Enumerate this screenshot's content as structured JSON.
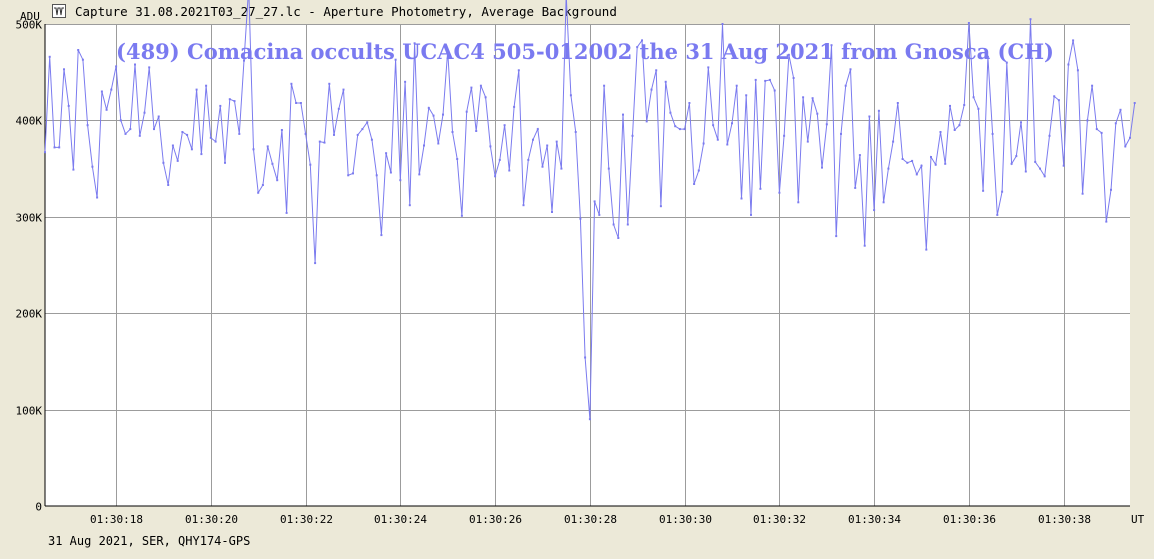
{
  "header": {
    "icon": "lightcurve-icon",
    "title": "Capture 31.08.2021T03_27_27.lc - Aperture Photometry, Average Background"
  },
  "footer": {
    "text": "31 Aug 2021, SER, QHY174-GPS"
  },
  "chart_data": {
    "type": "line",
    "title": "(489) Comacina occults UCAC4 505-012002 the 31 Aug 2021 from Gnosca (CH)",
    "ylabel": "ADU",
    "xlabel": "UT",
    "xlim": [
      16.5,
      39.4
    ],
    "ylim": [
      0,
      500000
    ],
    "grid": true,
    "series_color": "#7b7bef",
    "title_color": "#7a7af0",
    "x_ticks": [
      {
        "value": 18,
        "label": "01:30:18"
      },
      {
        "value": 20,
        "label": "01:30:20"
      },
      {
        "value": 22,
        "label": "01:30:22"
      },
      {
        "value": 24,
        "label": "01:30:24"
      },
      {
        "value": 26,
        "label": "01:30:26"
      },
      {
        "value": 28,
        "label": "01:30:28"
      },
      {
        "value": 30,
        "label": "01:30:30"
      },
      {
        "value": 32,
        "label": "01:30:32"
      },
      {
        "value": 34,
        "label": "01:30:34"
      },
      {
        "value": 36,
        "label": "01:30:36"
      },
      {
        "value": 38,
        "label": "01:30:38"
      }
    ],
    "y_ticks": [
      {
        "value": 0,
        "label": "0"
      },
      {
        "value": 100000,
        "label": "100K"
      },
      {
        "value": 200000,
        "label": "200K"
      },
      {
        "value": 300000,
        "label": "300K"
      },
      {
        "value": 400000,
        "label": "400K"
      },
      {
        "value": 500000,
        "label": "500K"
      }
    ],
    "x_start": 16.5,
    "x_step": 0.1,
    "values": [
      367000,
      466000,
      372000,
      372000,
      453000,
      415000,
      349000,
      473000,
      463000,
      395000,
      352000,
      320000,
      430000,
      411000,
      432000,
      456000,
      400000,
      386000,
      391000,
      458000,
      384000,
      408000,
      455000,
      391000,
      404000,
      356000,
      333000,
      374000,
      358000,
      388000,
      385000,
      370000,
      432000,
      365000,
      436000,
      382000,
      378000,
      415000,
      356000,
      422000,
      420000,
      386000,
      462000,
      538000,
      370000,
      325000,
      333000,
      373000,
      355000,
      338000,
      390000,
      304000,
      438000,
      418000,
      418000,
      386000,
      354000,
      252000,
      378000,
      377000,
      438000,
      385000,
      412000,
      432000,
      343000,
      345000,
      385000,
      391000,
      398000,
      380000,
      343000,
      281000,
      366000,
      346000,
      463000,
      338000,
      440000,
      312000,
      480000,
      344000,
      374000,
      413000,
      405000,
      376000,
      406000,
      472000,
      388000,
      360000,
      301000,
      409000,
      434000,
      389000,
      436000,
      424000,
      373000,
      342000,
      359000,
      395000,
      348000,
      414000,
      452000,
      312000,
      359000,
      380000,
      391000,
      352000,
      374000,
      305000,
      378000,
      350000,
      530000,
      426000,
      388000,
      298000,
      154000,
      90000,
      316000,
      302000,
      436000,
      350000,
      292000,
      278000,
      406000,
      292000,
      384000,
      476000,
      483000,
      399000,
      432000,
      452000,
      311000,
      440000,
      408000,
      394000,
      391000,
      391000,
      418000,
      334000,
      348000,
      376000,
      455000,
      395000,
      380000,
      500000,
      375000,
      397000,
      436000,
      319000,
      426000,
      302000,
      442000,
      329000,
      441000,
      442000,
      431000,
      325000,
      384000,
      468000,
      444000,
      315000,
      424000,
      378000,
      423000,
      407000,
      351000,
      396000,
      478000,
      280000,
      386000,
      436000,
      453000,
      330000,
      364000,
      270000,
      404000,
      307000,
      410000,
      315000,
      350000,
      378000,
      418000,
      360000,
      356000,
      358000,
      344000,
      353000,
      266000,
      362000,
      354000,
      388000,
      355000,
      415000,
      390000,
      395000,
      416000,
      501000,
      424000,
      412000,
      327000,
      466000,
      386000,
      302000,
      326000,
      460000,
      355000,
      363000,
      398000,
      347000,
      505000,
      357000,
      350000,
      342000,
      384000,
      425000,
      421000,
      353000,
      458000,
      483000,
      452000,
      324000,
      400000,
      436000,
      391000,
      387000,
      295000,
      328000,
      397000,
      411000,
      373000,
      382000,
      418000
    ]
  }
}
